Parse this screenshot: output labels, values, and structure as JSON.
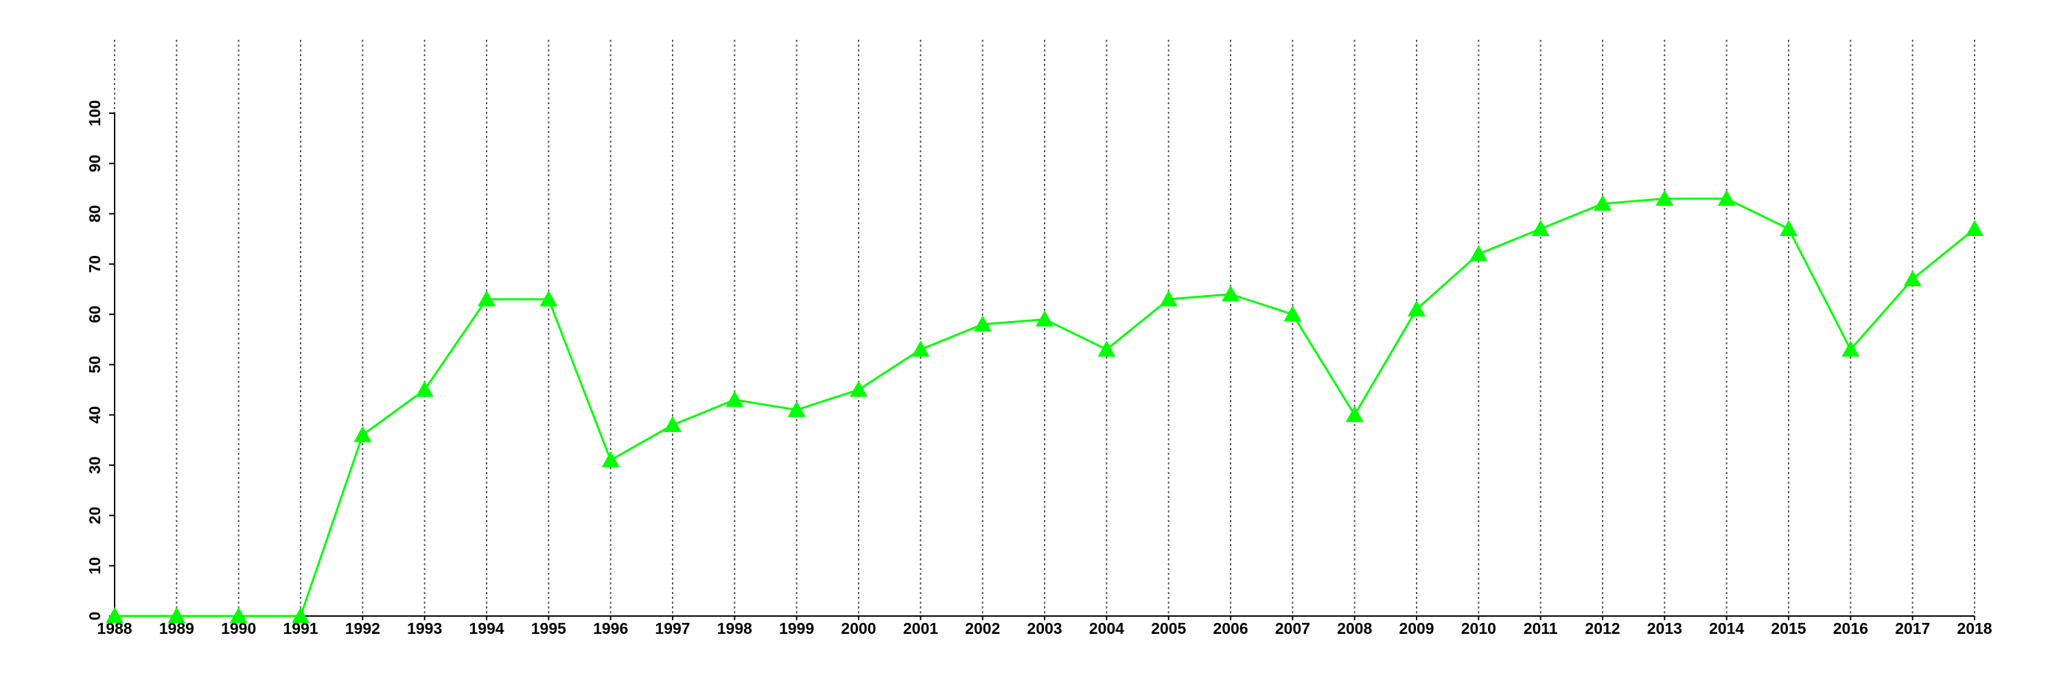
{
  "chart_data": {
    "type": "line",
    "x": [
      1988,
      1989,
      1990,
      1991,
      1992,
      1993,
      1994,
      1995,
      1996,
      1997,
      1998,
      1999,
      2000,
      2001,
      2002,
      2003,
      2004,
      2005,
      2006,
      2007,
      2008,
      2009,
      2010,
      2011,
      2012,
      2013,
      2014,
      2015,
      2016,
      2017,
      2018
    ],
    "values": [
      0,
      0,
      0,
      0,
      36,
      45,
      63,
      63,
      31,
      38,
      43,
      41,
      45,
      53,
      58,
      59,
      53,
      63,
      64,
      60,
      40,
      61,
      72,
      77,
      82,
      83,
      83,
      77,
      53,
      67,
      77
    ],
    "color": "#00ff00",
    "xlim": [
      1988,
      2018
    ],
    "xticks": [
      1988,
      1989,
      1990,
      1991,
      1992,
      1993,
      1994,
      1995,
      1996,
      1997,
      1998,
      1999,
      2000,
      2001,
      2002,
      2003,
      2004,
      2005,
      2006,
      2007,
      2008,
      2009,
      2010,
      2011,
      2012,
      2013,
      2014,
      2015,
      2016,
      2017,
      2018
    ],
    "ylim": [
      0,
      100
    ],
    "yticks": [
      0,
      10,
      20,
      30,
      40,
      50,
      60,
      70,
      80,
      90,
      100
    ],
    "xgrid": true
  }
}
